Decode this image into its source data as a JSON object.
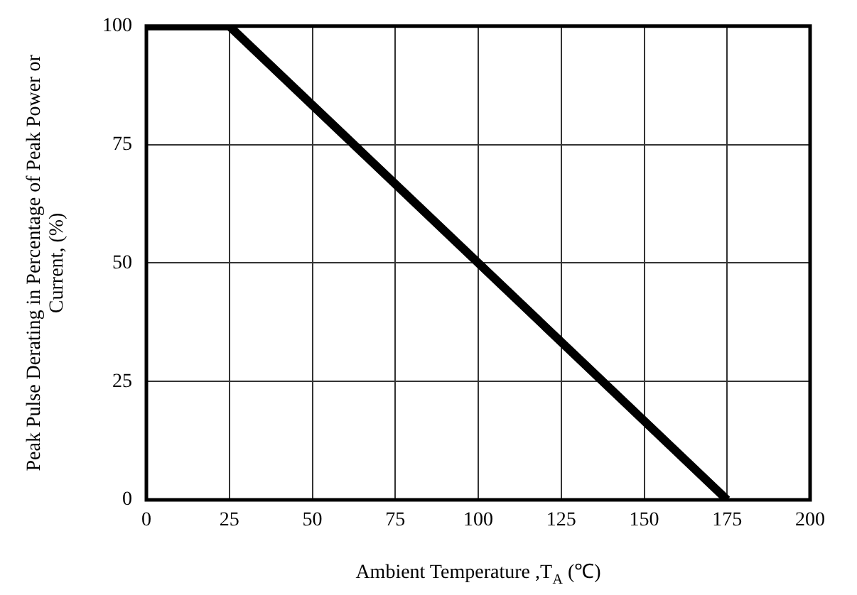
{
  "chart_data": {
    "type": "line",
    "xlabel": "Ambient Temperature ,T$_{A}$ (℃)",
    "ylabel": "Peak Pulse Derating in Percentage of Peak Power or Current, (%)",
    "series": [
      {
        "color": "#000000",
        "x": [
          0,
          25,
          175
        ],
        "values": [
          100,
          100,
          0
        ]
      }
    ],
    "xlim": [
      0,
      200
    ],
    "xticks": [
      0,
      25,
      50,
      75,
      100,
      125,
      150,
      175,
      200
    ],
    "ylim": [
      0,
      100
    ],
    "yticks": [
      0,
      25,
      50,
      75,
      100
    ],
    "grid": true,
    "legend": false,
    "marker": "none",
    "line_style": "solid"
  }
}
